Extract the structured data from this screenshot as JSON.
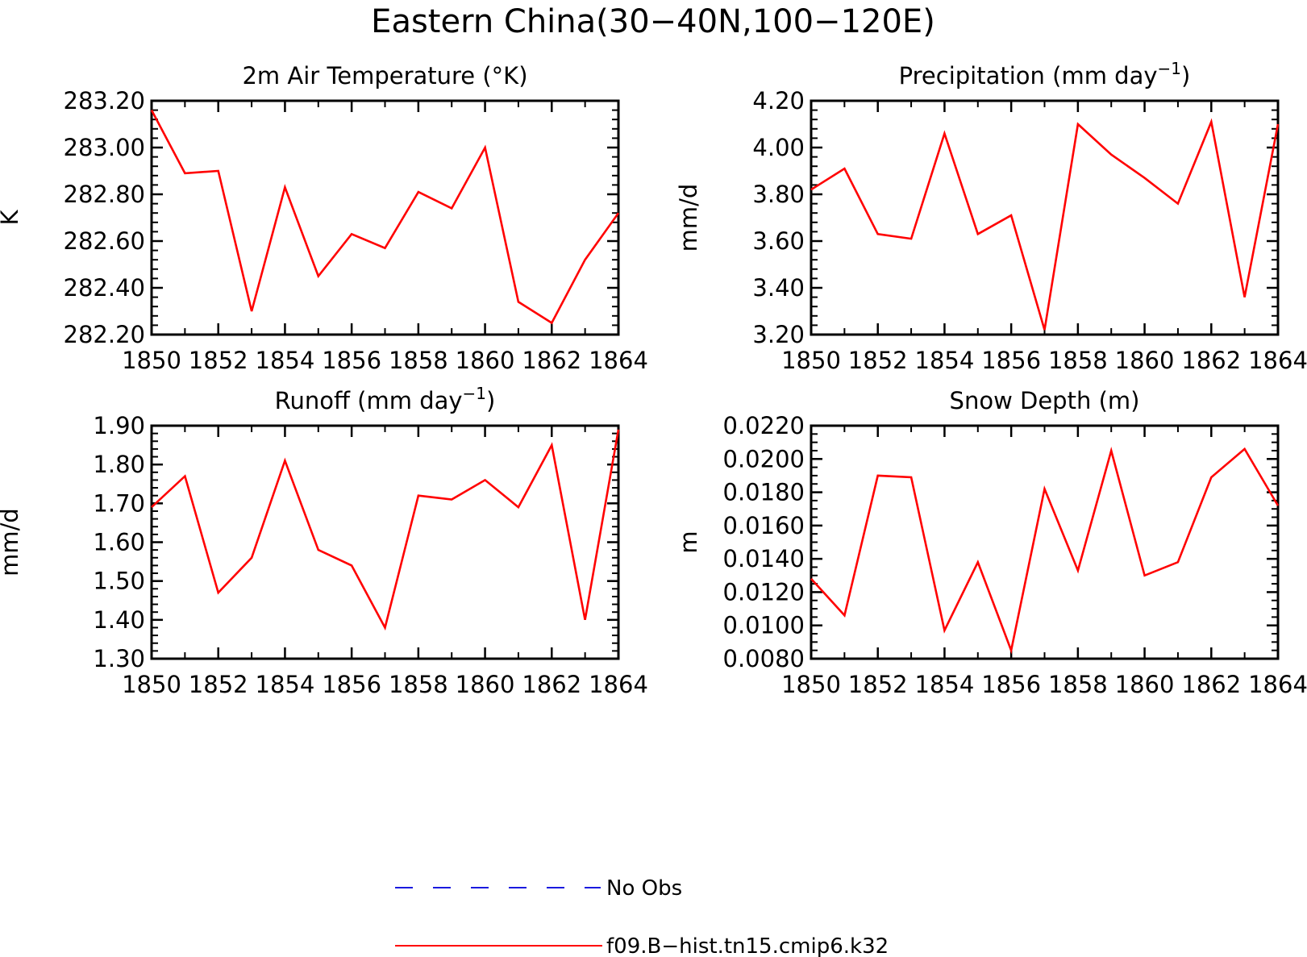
{
  "figure": {
    "title": "Eastern China(30−40N,100−120E)"
  },
  "legend": {
    "entries": [
      {
        "label": "No Obs",
        "color": "#1a1adf",
        "dash": "dashed"
      },
      {
        "label": "f09.B−hist.tn15.cmip6.k32",
        "color": "#ff0000",
        "dash": "solid"
      }
    ]
  },
  "chart_data": [
    {
      "type": "line",
      "title": "2m Air Temperature (°K)",
      "title_superscript": "",
      "title_suffix": "",
      "xlabel": "",
      "ylabel": "K",
      "xlim": [
        1850,
        1864
      ],
      "ylim": [
        282.2,
        283.2
      ],
      "xticks": [
        "1850",
        "1852",
        "1854",
        "1856",
        "1858",
        "1860",
        "1862",
        "1864"
      ],
      "yticks": [
        "282.20",
        "282.40",
        "282.60",
        "282.80",
        "283.00",
        "283.20"
      ],
      "yminor_step": 0.04,
      "grid": false,
      "x": [
        1850,
        1851,
        1852,
        1853,
        1854,
        1855,
        1856,
        1857,
        1858,
        1859,
        1860,
        1861,
        1862,
        1863,
        1864
      ],
      "series": [
        {
          "name": "f09.B−hist.tn15.cmip6.k32",
          "color": "#ff0000",
          "values": [
            283.16,
            282.89,
            282.9,
            282.3,
            282.83,
            282.45,
            282.63,
            282.57,
            282.81,
            282.74,
            283.0,
            282.34,
            282.25,
            282.52,
            282.72
          ]
        }
      ]
    },
    {
      "type": "line",
      "title": "Precipitation (mm day",
      "title_superscript": "−1",
      "title_suffix": ")",
      "xlabel": "",
      "ylabel": "mm/d",
      "xlim": [
        1850,
        1864
      ],
      "ylim": [
        3.2,
        4.2
      ],
      "xticks": [
        "1850",
        "1852",
        "1854",
        "1856",
        "1858",
        "1860",
        "1862",
        "1864"
      ],
      "yticks": [
        "3.20",
        "3.40",
        "3.60",
        "3.80",
        "4.00",
        "4.20"
      ],
      "yminor_step": 0.04,
      "grid": false,
      "x": [
        1850,
        1851,
        1852,
        1853,
        1854,
        1855,
        1856,
        1857,
        1858,
        1859,
        1860,
        1861,
        1862,
        1863,
        1864
      ],
      "series": [
        {
          "name": "f09.B−hist.tn15.cmip6.k32",
          "color": "#ff0000",
          "values": [
            3.82,
            3.91,
            3.63,
            3.61,
            4.06,
            3.63,
            3.71,
            3.22,
            4.1,
            3.97,
            3.87,
            3.76,
            4.11,
            3.36,
            4.1
          ]
        }
      ]
    },
    {
      "type": "line",
      "title": "Runoff (mm day",
      "title_superscript": "−1",
      "title_suffix": ")",
      "xlabel": "",
      "ylabel": "mm/d",
      "xlim": [
        1850,
        1864
      ],
      "ylim": [
        1.3,
        1.9
      ],
      "xticks": [
        "1850",
        "1852",
        "1854",
        "1856",
        "1858",
        "1860",
        "1862",
        "1864"
      ],
      "yticks": [
        "1.30",
        "1.40",
        "1.50",
        "1.60",
        "1.70",
        "1.80",
        "1.90"
      ],
      "yminor_step": 0.02,
      "grid": false,
      "x": [
        1850,
        1851,
        1852,
        1853,
        1854,
        1855,
        1856,
        1857,
        1858,
        1859,
        1860,
        1861,
        1862,
        1863,
        1864
      ],
      "series": [
        {
          "name": "f09.B−hist.tn15.cmip6.k32",
          "color": "#ff0000",
          "values": [
            1.69,
            1.77,
            1.47,
            1.56,
            1.81,
            1.58,
            1.54,
            1.38,
            1.72,
            1.71,
            1.76,
            1.69,
            1.85,
            1.4,
            1.89
          ]
        }
      ]
    },
    {
      "type": "line",
      "title": "Snow Depth (m)",
      "title_superscript": "",
      "title_suffix": "",
      "xlabel": "",
      "ylabel": "m",
      "xlim": [
        1850,
        1864
      ],
      "ylim": [
        0.008,
        0.022
      ],
      "xticks": [
        "1850",
        "1852",
        "1854",
        "1856",
        "1858",
        "1860",
        "1862",
        "1864"
      ],
      "yticks": [
        "0.0080",
        "0.0100",
        "0.0120",
        "0.0140",
        "0.0160",
        "0.0180",
        "0.0200",
        "0.0220"
      ],
      "yminor_step": 0.0005,
      "grid": false,
      "x": [
        1850,
        1851,
        1852,
        1853,
        1854,
        1855,
        1856,
        1857,
        1858,
        1859,
        1860,
        1861,
        1862,
        1863,
        1864
      ],
      "series": [
        {
          "name": "f09.B−hist.tn15.cmip6.k32",
          "color": "#ff0000",
          "values": [
            0.0128,
            0.0106,
            0.019,
            0.0189,
            0.0097,
            0.0138,
            0.0085,
            0.0182,
            0.0133,
            0.0205,
            0.013,
            0.0138,
            0.0189,
            0.0206,
            0.0172
          ]
        }
      ]
    }
  ]
}
